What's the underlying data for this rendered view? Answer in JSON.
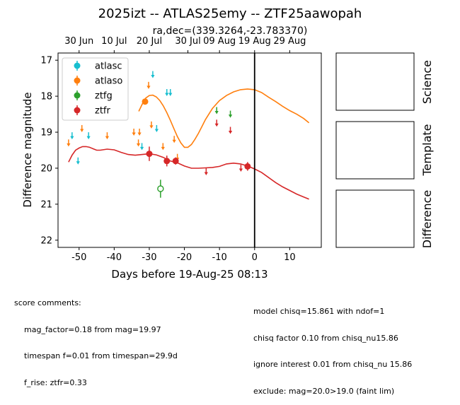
{
  "title": "2025izt -- ATLAS25emy -- ZTF25aawopah",
  "subtitle": "ra,dec=(339.3264,-23.783370)",
  "chart_data": {
    "type": "scatter",
    "xlabel": "Days before 19-Aug-25 08:13",
    "ylabel": "Difference magnitude",
    "xlim": [
      -56,
      19
    ],
    "ylim": [
      22.2,
      16.8
    ],
    "x_ticks": [
      -50,
      -40,
      -30,
      -20,
      -10,
      0,
      10
    ],
    "y_ticks": [
      17,
      18,
      19,
      20,
      21,
      22
    ],
    "top_axis_ticks": [
      {
        "x": -50,
        "label": "30 Jun"
      },
      {
        "x": -40,
        "label": "10 Jul"
      },
      {
        "x": -30,
        "label": "20 Jul"
      },
      {
        "x": -19,
        "label": "30 Jul"
      },
      {
        "x": -10,
        "label": "09 Aug"
      },
      {
        "x": 0,
        "label": "19 Aug"
      },
      {
        "x": 10,
        "label": "29 Aug"
      }
    ],
    "reference_line_x": 0,
    "legend_position": "top-left",
    "series": [
      {
        "name": "atlasc",
        "color": "#17becf",
        "detections": [],
        "upper_limits": [
          [
            -52,
            19.1
          ],
          [
            -50.3,
            19.8
          ],
          [
            -47.3,
            19.1
          ],
          [
            -32.1,
            19.4
          ],
          [
            -29,
            17.4
          ],
          [
            -27.9,
            18.9
          ],
          [
            -25,
            17.9
          ],
          [
            -24,
            17.9
          ]
        ]
      },
      {
        "name": "atlaso",
        "color": "#ff7f0e",
        "detections": [
          {
            "x": -31.2,
            "y": 18.15,
            "err": 0.05
          }
        ],
        "upper_limits": [
          [
            -53,
            19.3
          ],
          [
            -49.2,
            18.9
          ],
          [
            -42,
            19.1
          ],
          [
            -34.4,
            19.0
          ],
          [
            -33.1,
            19.3
          ],
          [
            -32.8,
            19.0
          ],
          [
            -30.2,
            17.7
          ],
          [
            -29.4,
            18.8
          ],
          [
            -26.1,
            19.4
          ],
          [
            -22.9,
            19.2
          ],
          [
            -22,
            19.7
          ]
        ]
      },
      {
        "name": "ztfg",
        "color": "#2ca02c",
        "detections": [
          {
            "x": -26.8,
            "y": 20.57,
            "err": 0.25,
            "open": true
          }
        ],
        "upper_limits": [
          [
            -10.8,
            18.4
          ],
          [
            -6.9,
            18.5
          ]
        ]
      },
      {
        "name": "ztfr",
        "color": "#d62728",
        "detections": [
          {
            "x": -30,
            "y": 19.6,
            "err": 0.2
          },
          {
            "x": -25,
            "y": 19.8,
            "err": 0.15
          },
          {
            "x": -22.5,
            "y": 19.8,
            "err": 0.1
          },
          {
            "x": -2,
            "y": 19.95,
            "err": 0.12
          }
        ],
        "upper_limits": [
          [
            -13.8,
            20.1
          ],
          [
            -10.8,
            18.75
          ],
          [
            -6.9,
            18.95
          ],
          [
            -3.9,
            20.0
          ]
        ]
      }
    ],
    "model_curves": [
      {
        "color": "#ff7f0e",
        "points": [
          [
            -33,
            18.42
          ],
          [
            -32,
            18.22
          ],
          [
            -31,
            18.05
          ],
          [
            -30,
            17.98
          ],
          [
            -29,
            17.97
          ],
          [
            -28,
            18.02
          ],
          [
            -27,
            18.12
          ],
          [
            -26,
            18.27
          ],
          [
            -25,
            18.46
          ],
          [
            -24,
            18.67
          ],
          [
            -23,
            18.9
          ],
          [
            -22,
            19.12
          ],
          [
            -21,
            19.3
          ],
          [
            -20,
            19.42
          ],
          [
            -19,
            19.42
          ],
          [
            -18,
            19.34
          ],
          [
            -17,
            19.2
          ],
          [
            -16,
            19.03
          ],
          [
            -15,
            18.84
          ],
          [
            -14,
            18.65
          ],
          [
            -12,
            18.34
          ],
          [
            -10,
            18.12
          ],
          [
            -8,
            17.98
          ],
          [
            -6,
            17.88
          ],
          [
            -4,
            17.82
          ],
          [
            -2,
            17.8
          ],
          [
            0,
            17.82
          ],
          [
            2,
            17.9
          ],
          [
            4,
            18.03
          ],
          [
            6,
            18.15
          ],
          [
            8,
            18.28
          ],
          [
            10,
            18.4
          ],
          [
            12,
            18.5
          ],
          [
            14,
            18.62
          ],
          [
            15.5,
            18.74
          ]
        ]
      },
      {
        "color": "#d62728",
        "points": [
          [
            -53,
            19.83
          ],
          [
            -52,
            19.64
          ],
          [
            -51,
            19.5
          ],
          [
            -50,
            19.44
          ],
          [
            -49,
            19.4
          ],
          [
            -48,
            19.4
          ],
          [
            -47,
            19.42
          ],
          [
            -46,
            19.46
          ],
          [
            -45,
            19.5
          ],
          [
            -44,
            19.5
          ],
          [
            -42,
            19.47
          ],
          [
            -40,
            19.49
          ],
          [
            -38,
            19.56
          ],
          [
            -36,
            19.62
          ],
          [
            -34,
            19.64
          ],
          [
            -32,
            19.62
          ],
          [
            -30,
            19.6
          ],
          [
            -28,
            19.63
          ],
          [
            -26,
            19.7
          ],
          [
            -24,
            19.8
          ],
          [
            -22,
            19.85
          ],
          [
            -20,
            19.94
          ],
          [
            -18,
            20.0
          ],
          [
            -16,
            20.0
          ],
          [
            -14,
            19.99
          ],
          [
            -12,
            19.98
          ],
          [
            -10,
            19.95
          ],
          [
            -8,
            19.88
          ],
          [
            -6,
            19.86
          ],
          [
            -4,
            19.88
          ],
          [
            -2,
            19.94
          ],
          [
            0,
            20.02
          ],
          [
            2,
            20.12
          ],
          [
            4,
            20.26
          ],
          [
            6,
            20.4
          ],
          [
            8,
            20.52
          ],
          [
            10,
            20.62
          ],
          [
            12,
            20.72
          ],
          [
            14,
            20.8
          ],
          [
            15.5,
            20.86
          ]
        ]
      }
    ]
  },
  "panels": [
    {
      "label": "Science"
    },
    {
      "label": "Template"
    },
    {
      "label": "Difference"
    }
  ],
  "score_comments": {
    "heading": "score comments:",
    "left_lines": [
      "mag_factor=0.18 from mag=19.97",
      "timespan f=0.01 from timespan=29.9d",
      "f_rise: ztfr=0.33"
    ],
    "right_lines": [
      "model chisq=15.861 with ndof=1",
      "chisq factor 0.10 from chisq_nu15.86",
      "ignore interest 0.01 from chisq_nu 15.86",
      "exclude: mag=20.0>19.0 (faint lim)"
    ]
  }
}
